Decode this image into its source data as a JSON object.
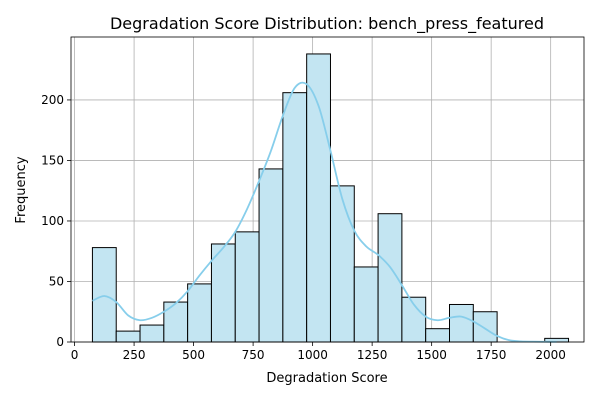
{
  "chart_data": {
    "type": "bar",
    "title": "Degradation Score Distribution: bench_press_featured",
    "xlabel": "Degradation Score",
    "ylabel": "Frequency",
    "xlim": [
      -15,
      2140
    ],
    "ylim": [
      0,
      252
    ],
    "grid": true,
    "x_ticks": [
      {
        "value": 0,
        "label": "0"
      },
      {
        "value": 250,
        "label": "250"
      },
      {
        "value": 500,
        "label": "500"
      },
      {
        "value": 750,
        "label": "750"
      },
      {
        "value": 1000,
        "label": "1000"
      },
      {
        "value": 1250,
        "label": "1250"
      },
      {
        "value": 1500,
        "label": "1500"
      },
      {
        "value": 1750,
        "label": "1750"
      },
      {
        "value": 2000,
        "label": "2000"
      }
    ],
    "y_ticks": [
      {
        "value": 0,
        "label": "0"
      },
      {
        "value": 50,
        "label": "50"
      },
      {
        "value": 100,
        "label": "100"
      },
      {
        "value": 150,
        "label": "150"
      },
      {
        "value": 200,
        "label": "200"
      }
    ],
    "bins": [
      {
        "x0": 75,
        "x1": 175,
        "count": 78
      },
      {
        "x0": 175,
        "x1": 275,
        "count": 9
      },
      {
        "x0": 275,
        "x1": 375,
        "count": 14
      },
      {
        "x0": 375,
        "x1": 475,
        "count": 33
      },
      {
        "x0": 475,
        "x1": 575,
        "count": 48
      },
      {
        "x0": 575,
        "x1": 675,
        "count": 81
      },
      {
        "x0": 675,
        "x1": 775,
        "count": 91
      },
      {
        "x0": 775,
        "x1": 875,
        "count": 143
      },
      {
        "x0": 875,
        "x1": 975,
        "count": 206
      },
      {
        "x0": 975,
        "x1": 1075,
        "count": 238
      },
      {
        "x0": 1075,
        "x1": 1175,
        "count": 129
      },
      {
        "x0": 1175,
        "x1": 1275,
        "count": 62
      },
      {
        "x0": 1275,
        "x1": 1375,
        "count": 106
      },
      {
        "x0": 1375,
        "x1": 1475,
        "count": 37
      },
      {
        "x0": 1475,
        "x1": 1575,
        "count": 11
      },
      {
        "x0": 1575,
        "x1": 1675,
        "count": 31
      },
      {
        "x0": 1675,
        "x1": 1775,
        "count": 25
      },
      {
        "x0": 1775,
        "x1": 1875,
        "count": 0
      },
      {
        "x0": 1875,
        "x1": 1975,
        "count": 0
      },
      {
        "x0": 1975,
        "x1": 2075,
        "count": 3
      }
    ],
    "kde": {
      "x": [
        75,
        125,
        175,
        225,
        275,
        325,
        375,
        425,
        475,
        525,
        575,
        625,
        675,
        725,
        775,
        825,
        875,
        925,
        975,
        1025,
        1075,
        1125,
        1175,
        1225,
        1275,
        1325,
        1375,
        1425,
        1475,
        1525,
        1575,
        1625,
        1675,
        1725,
        1775,
        1825,
        1875,
        1925,
        1975,
        2025
      ],
      "y": [
        34,
        38,
        33,
        22,
        18,
        20,
        25,
        32,
        42,
        55,
        67,
        78,
        91,
        110,
        133,
        158,
        187,
        210,
        213,
        195,
        158,
        118,
        92,
        79,
        72,
        62,
        47,
        31,
        21,
        18,
        20,
        21,
        17,
        11,
        5,
        1.5,
        0.5,
        0.3,
        0.2,
        0.1
      ]
    },
    "colors": {
      "bar_fill": "#c3e5f2",
      "bar_edge": "#000000",
      "kde_line": "#87ceeb",
      "grid": "#b0b0b0",
      "axis": "#000000"
    }
  }
}
